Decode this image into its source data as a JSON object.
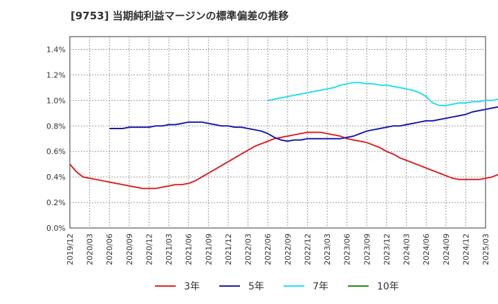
{
  "chart_data": {
    "type": "line",
    "title": "[9753]  当期純利益マージンの標準偏差の推移",
    "y_ticks": [
      "0.0%",
      "0.2%",
      "0.4%",
      "0.6%",
      "0.8%",
      "1.0%",
      "1.2%",
      "1.4%"
    ],
    "ylim": [
      0,
      1.5
    ],
    "x_ticks": [
      "2019/12",
      "2020/03",
      "2020/06",
      "2020/09",
      "2020/12",
      "2021/03",
      "2021/06",
      "2021/09",
      "2021/12",
      "2022/03",
      "2022/06",
      "2022/09",
      "2022/12",
      "2023/03",
      "2023/06",
      "2023/09",
      "2023/12",
      "2024/03",
      "2024/06",
      "2024/09",
      "2024/12",
      "2025/03"
    ],
    "grid": true,
    "legend_position": "bottom",
    "series": [
      {
        "name": "3年",
        "color": "#dd2222",
        "start_index": 0,
        "values": [
          0.5,
          0.44,
          0.4,
          0.39,
          0.38,
          0.37,
          0.36,
          0.35,
          0.34,
          0.33,
          0.32,
          0.31,
          0.31,
          0.31,
          0.32,
          0.33,
          0.34,
          0.34,
          0.35,
          0.37,
          0.4,
          0.43,
          0.46,
          0.49,
          0.52,
          0.55,
          0.58,
          0.61,
          0.64,
          0.66,
          0.68,
          0.7,
          0.71,
          0.72,
          0.73,
          0.74,
          0.75,
          0.75,
          0.75,
          0.74,
          0.73,
          0.72,
          0.7,
          0.69,
          0.68,
          0.67,
          0.65,
          0.63,
          0.6,
          0.58,
          0.55,
          0.53,
          0.51,
          0.49,
          0.47,
          0.45,
          0.43,
          0.41,
          0.39,
          0.38,
          0.38,
          0.38,
          0.38,
          0.39,
          0.4,
          0.42,
          0.44,
          0.46,
          0.48,
          0.51
        ]
      },
      {
        "name": "5年",
        "color": "#1a1aaa",
        "start_index": 6,
        "values": [
          0.78,
          0.78,
          0.78,
          0.79,
          0.79,
          0.79,
          0.79,
          0.8,
          0.8,
          0.81,
          0.81,
          0.82,
          0.83,
          0.83,
          0.83,
          0.82,
          0.81,
          0.8,
          0.8,
          0.79,
          0.79,
          0.78,
          0.77,
          0.76,
          0.74,
          0.71,
          0.69,
          0.68,
          0.69,
          0.69,
          0.7,
          0.7,
          0.7,
          0.7,
          0.7,
          0.7,
          0.71,
          0.72,
          0.74,
          0.76,
          0.77,
          0.78,
          0.79,
          0.8,
          0.8,
          0.81,
          0.82,
          0.83,
          0.84,
          0.84,
          0.85,
          0.86,
          0.87,
          0.88,
          0.89,
          0.91,
          0.92,
          0.93,
          0.94,
          0.95,
          0.95,
          0.95,
          0.95,
          0.95,
          0.94,
          0.93
        ]
      },
      {
        "name": "7年",
        "color": "#22ddee",
        "start_index": 30,
        "values": [
          1.0,
          1.01,
          1.02,
          1.03,
          1.04,
          1.05,
          1.06,
          1.07,
          1.08,
          1.09,
          1.1,
          1.12,
          1.13,
          1.14,
          1.14,
          1.13,
          1.13,
          1.12,
          1.12,
          1.11,
          1.1,
          1.09,
          1.08,
          1.06,
          1.03,
          0.98,
          0.96,
          0.96,
          0.97,
          0.98,
          0.98,
          0.99,
          0.99,
          1.0,
          1.0,
          1.01,
          1.02,
          1.03,
          1.05
        ]
      },
      {
        "name": "10年",
        "color": "#228822",
        "start_index": 0,
        "values": []
      }
    ]
  }
}
